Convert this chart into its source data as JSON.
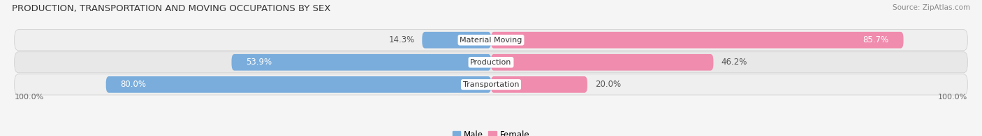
{
  "title": "PRODUCTION, TRANSPORTATION AND MOVING OCCUPATIONS BY SEX",
  "source": "Source: ZipAtlas.com",
  "categories": [
    "Transportation",
    "Production",
    "Material Moving"
  ],
  "male_pct": [
    80.0,
    53.9,
    14.3
  ],
  "female_pct": [
    20.0,
    46.2,
    85.7
  ],
  "male_color": "#7aaddc",
  "female_color": "#f08cad",
  "male_color_light": "#b8d4ed",
  "female_color_light": "#f7b8cb",
  "row_bg_color": "#efefef",
  "row_bg_color2": "#e8e8e8",
  "fig_bg_color": "#f5f5f5",
  "axis_label_left": "100.0%",
  "axis_label_right": "100.0%",
  "title_fontsize": 9.5,
  "source_fontsize": 7.5,
  "bar_label_fontsize": 8.5,
  "cat_label_fontsize": 8.0,
  "legend_fontsize": 8.5,
  "outside_label_color": "#555555"
}
